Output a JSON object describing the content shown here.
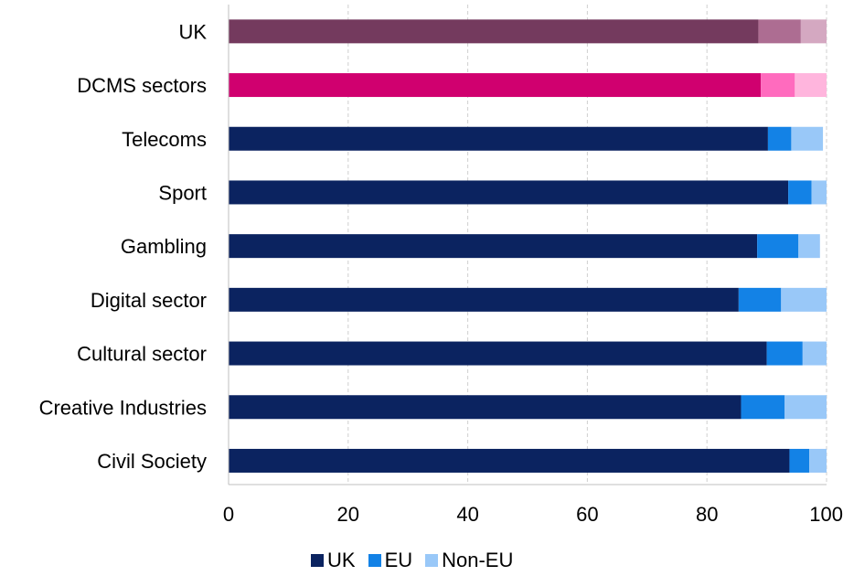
{
  "chart_data": {
    "type": "bar",
    "orientation": "horizontal",
    "stacked": true,
    "title": "",
    "xlabel": "",
    "ylabel": "",
    "xlim": [
      0,
      100
    ],
    "x_ticks": [
      "0",
      "20",
      "40",
      "60",
      "80",
      "100"
    ],
    "grid": "vertical dashed",
    "legend_position": "bottom",
    "categories": [
      "UK",
      "DCMS sectors",
      "Telecoms",
      "Sport",
      "Gambling",
      "Digital sector",
      "Cultural sector",
      "Creative Industries",
      "Civil Society"
    ],
    "series": [
      {
        "name": "UK",
        "values": [
          88.6,
          89.0,
          90.2,
          93.6,
          88.4,
          85.3,
          90.0,
          85.7,
          93.8
        ]
      },
      {
        "name": "EU",
        "values": [
          7.1,
          5.7,
          3.9,
          3.9,
          6.9,
          7.1,
          6.0,
          7.3,
          3.3
        ]
      },
      {
        "name": "Non-EU",
        "values": [
          4.3,
          5.3,
          5.3,
          2.5,
          3.6,
          7.6,
          4.0,
          7.0,
          2.9
        ]
      }
    ],
    "bar_colors": {
      "default": [
        "#0b2360",
        "#1382e6",
        "#99c8f8"
      ],
      "UK": [
        "#743a5e",
        "#ad6d92",
        "#d4a8c1"
      ],
      "DCMS sectors": [
        "#d0006f",
        "#ff6bbe",
        "#ffb5dd"
      ]
    }
  },
  "legend": [
    {
      "label": "UK",
      "color": "#0b2360"
    },
    {
      "label": "EU",
      "color": "#1382e6"
    },
    {
      "label": "Non-EU",
      "color": "#99c8f8"
    }
  ]
}
